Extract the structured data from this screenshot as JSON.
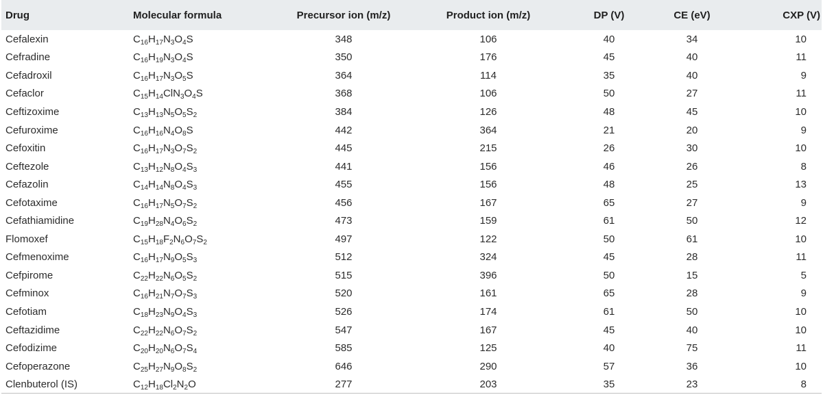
{
  "table": {
    "headers": [
      "Drug",
      "Molecular formula",
      "Precursor ion (m/z)",
      "Product ion (m/z)",
      "DP (V)",
      "CE (eV)",
      "CXP (V)"
    ],
    "rows": [
      {
        "drug": "Cefalexin",
        "formula": [
          [
            "C",
            "16"
          ],
          [
            "H",
            "17"
          ],
          [
            "N",
            "3"
          ],
          [
            "O",
            "4"
          ],
          [
            "S",
            ""
          ]
        ],
        "precursor": "348",
        "product": "106",
        "dp": "40",
        "ce": "34",
        "cxp": "10"
      },
      {
        "drug": "Cefradine",
        "formula": [
          [
            "C",
            "16"
          ],
          [
            "H",
            "19"
          ],
          [
            "N",
            "3"
          ],
          [
            "O",
            "4"
          ],
          [
            "S",
            ""
          ]
        ],
        "precursor": "350",
        "product": "176",
        "dp": "45",
        "ce": "40",
        "cxp": "11"
      },
      {
        "drug": "Cefadroxil",
        "formula": [
          [
            "C",
            "16"
          ],
          [
            "H",
            "17"
          ],
          [
            "N",
            "3"
          ],
          [
            "O",
            "5"
          ],
          [
            "S",
            ""
          ]
        ],
        "precursor": "364",
        "product": "114",
        "dp": "35",
        "ce": "40",
        "cxp": "9"
      },
      {
        "drug": "Cefaclor",
        "formula": [
          [
            "C",
            "15"
          ],
          [
            "H",
            "14"
          ],
          [
            "ClN",
            "3"
          ],
          [
            "O",
            "4"
          ],
          [
            "S",
            ""
          ]
        ],
        "precursor": "368",
        "product": "106",
        "dp": "50",
        "ce": "27",
        "cxp": "11"
      },
      {
        "drug": "Ceftizoxime",
        "formula": [
          [
            "C",
            "13"
          ],
          [
            "H",
            "13"
          ],
          [
            "N",
            "5"
          ],
          [
            "O",
            "5"
          ],
          [
            "S",
            "2"
          ]
        ],
        "precursor": "384",
        "product": "126",
        "dp": "48",
        "ce": "45",
        "cxp": "10"
      },
      {
        "drug": "Cefuroxime",
        "formula": [
          [
            "C",
            "16"
          ],
          [
            "H",
            "16"
          ],
          [
            "N",
            "4"
          ],
          [
            "O",
            "8"
          ],
          [
            "S",
            ""
          ]
        ],
        "precursor": "442",
        "product": "364",
        "dp": "21",
        "ce": "20",
        "cxp": "9"
      },
      {
        "drug": "Cefoxitin",
        "formula": [
          [
            "C",
            "16"
          ],
          [
            "H",
            "17"
          ],
          [
            "N",
            "3"
          ],
          [
            "O",
            "7"
          ],
          [
            "S",
            "2"
          ]
        ],
        "precursor": "445",
        "product": "215",
        "dp": "26",
        "ce": "30",
        "cxp": "10"
      },
      {
        "drug": "Ceftezole",
        "formula": [
          [
            "C",
            "13"
          ],
          [
            "H",
            "12"
          ],
          [
            "N",
            "8"
          ],
          [
            "O",
            "4"
          ],
          [
            "S",
            "3"
          ]
        ],
        "precursor": "441",
        "product": "156",
        "dp": "46",
        "ce": "26",
        "cxp": "8"
      },
      {
        "drug": "Cefazolin",
        "formula": [
          [
            "C",
            "14"
          ],
          [
            "H",
            "14"
          ],
          [
            "N",
            "8"
          ],
          [
            "O",
            "4"
          ],
          [
            "S",
            "3"
          ]
        ],
        "precursor": "455",
        "product": "156",
        "dp": "48",
        "ce": "25",
        "cxp": "13"
      },
      {
        "drug": "Cefotaxime",
        "formula": [
          [
            "C",
            "16"
          ],
          [
            "H",
            "17"
          ],
          [
            "N",
            "5"
          ],
          [
            "O",
            "7"
          ],
          [
            "S",
            "2"
          ]
        ],
        "precursor": "456",
        "product": "167",
        "dp": "65",
        "ce": "27",
        "cxp": "9"
      },
      {
        "drug": "Cefathiamidine",
        "formula": [
          [
            "C",
            "19"
          ],
          [
            "H",
            "28"
          ],
          [
            "N",
            "4"
          ],
          [
            "O",
            "6"
          ],
          [
            "S",
            "2"
          ]
        ],
        "precursor": "473",
        "product": "159",
        "dp": "61",
        "ce": "50",
        "cxp": "12"
      },
      {
        "drug": "Flomoxef",
        "formula": [
          [
            "C",
            "15"
          ],
          [
            "H",
            "18"
          ],
          [
            "F",
            "2"
          ],
          [
            "N",
            "6"
          ],
          [
            "O",
            "7"
          ],
          [
            "S",
            "2"
          ]
        ],
        "precursor": "497",
        "product": "122",
        "dp": "50",
        "ce": "61",
        "cxp": "10"
      },
      {
        "drug": "Cefmenoxime",
        "formula": [
          [
            "C",
            "16"
          ],
          [
            "H",
            "17"
          ],
          [
            "N",
            "9"
          ],
          [
            "O",
            "5"
          ],
          [
            "S",
            "3"
          ]
        ],
        "precursor": "512",
        "product": "324",
        "dp": "45",
        "ce": "28",
        "cxp": "11"
      },
      {
        "drug": "Cefpirome",
        "formula": [
          [
            "C",
            "22"
          ],
          [
            "H",
            "22"
          ],
          [
            "N",
            "6"
          ],
          [
            "O",
            "5"
          ],
          [
            "S",
            "2"
          ]
        ],
        "precursor": "515",
        "product": "396",
        "dp": "50",
        "ce": "15",
        "cxp": "5"
      },
      {
        "drug": "Cefminox",
        "formula": [
          [
            "C",
            "16"
          ],
          [
            "H",
            "21"
          ],
          [
            "N",
            "7"
          ],
          [
            "O",
            "7"
          ],
          [
            "S",
            "3"
          ]
        ],
        "precursor": "520",
        "product": "161",
        "dp": "65",
        "ce": "28",
        "cxp": "9"
      },
      {
        "drug": "Cefotiam",
        "formula": [
          [
            "C",
            "18"
          ],
          [
            "H",
            "23"
          ],
          [
            "N",
            "9"
          ],
          [
            "O",
            "4"
          ],
          [
            "S",
            "3"
          ]
        ],
        "precursor": "526",
        "product": "174",
        "dp": "61",
        "ce": "50",
        "cxp": "10"
      },
      {
        "drug": "Ceftazidime",
        "formula": [
          [
            "C",
            "22"
          ],
          [
            "H",
            "22"
          ],
          [
            "N",
            "6"
          ],
          [
            "O",
            "7"
          ],
          [
            "S",
            "2"
          ]
        ],
        "precursor": "547",
        "product": "167",
        "dp": "45",
        "ce": "40",
        "cxp": "10"
      },
      {
        "drug": "Cefodizime",
        "formula": [
          [
            "C",
            "20"
          ],
          [
            "H",
            "20"
          ],
          [
            "N",
            "6"
          ],
          [
            "O",
            "7"
          ],
          [
            "S",
            "4"
          ]
        ],
        "precursor": "585",
        "product": "125",
        "dp": "40",
        "ce": "75",
        "cxp": "11"
      },
      {
        "drug": "Cefoperazone",
        "formula": [
          [
            "C",
            "25"
          ],
          [
            "H",
            "27"
          ],
          [
            "N",
            "9"
          ],
          [
            "O",
            "8"
          ],
          [
            "S",
            "2"
          ]
        ],
        "precursor": "646",
        "product": "290",
        "dp": "57",
        "ce": "36",
        "cxp": "10"
      },
      {
        "drug": "Clenbuterol (IS)",
        "formula": [
          [
            "C",
            "12"
          ],
          [
            "H",
            "18"
          ],
          [
            "Cl",
            "2"
          ],
          [
            "N",
            "2"
          ],
          [
            "O",
            ""
          ]
        ],
        "precursor": "277",
        "product": "203",
        "dp": "35",
        "ce": "23",
        "cxp": "8"
      }
    ]
  }
}
